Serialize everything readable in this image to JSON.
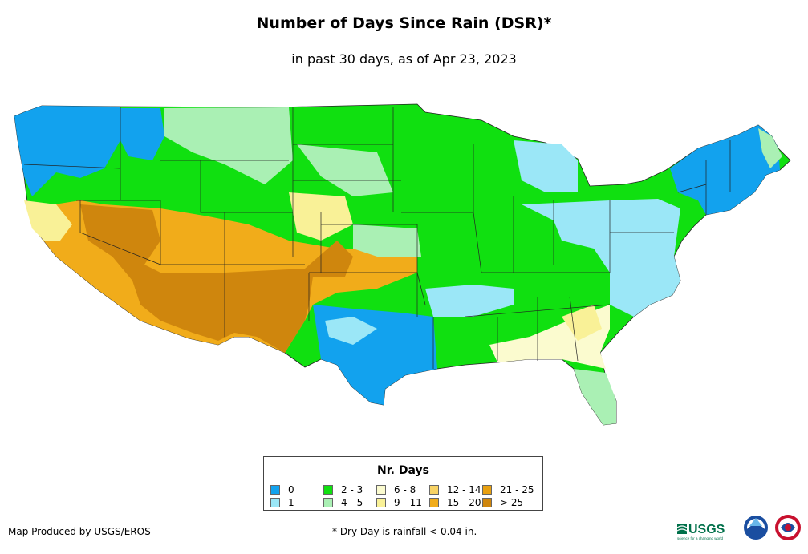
{
  "title": "Number of Days Since Rain (DSR)*",
  "subtitle": "in past 30 days, as of Apr 23, 2023",
  "legend": {
    "title": "Nr. Days",
    "items": [
      {
        "label": "0",
        "color": "#12a2ee"
      },
      {
        "label": "1",
        "color": "#9be7f7"
      },
      {
        "label": "2 - 3",
        "color": "#10e010"
      },
      {
        "label": "4 - 5",
        "color": "#aaf0b4"
      },
      {
        "label": "6 - 8",
        "color": "#fbfbcf"
      },
      {
        "label": "9 - 11",
        "color": "#f9f197"
      },
      {
        "label": "12 - 14",
        "color": "#f8d365"
      },
      {
        "label": "15 - 20",
        "color": "#f1ac1a"
      },
      {
        "label": "21 - 25",
        "color": "#e8a010"
      },
      {
        "label": "> 25",
        "color": "#cf860d"
      }
    ]
  },
  "footer": {
    "produced_by": "Map Produced by USGS/EROS",
    "note": "* Dry Day is rainfall < 0.04 in."
  },
  "logos": {
    "usgs": "USGS",
    "usgs_tagline": "science for a changing world"
  }
}
